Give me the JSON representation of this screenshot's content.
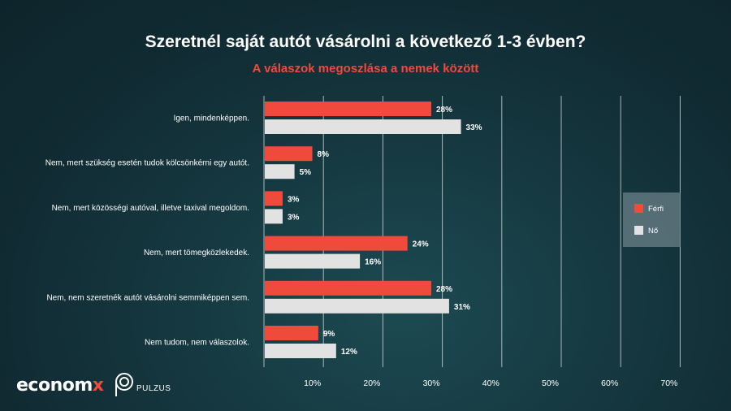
{
  "title": "Szeretnél saját autót vásárolni a következő 1-3 évben?",
  "subtitle": "A válaszok megoszlása a nemek között",
  "brand": {
    "economx": "econom",
    "economx_x": "x",
    "pulzus": "PULZUS"
  },
  "colors": {
    "background": "#133540",
    "ferfi": "#f04a3c",
    "no": "#e2e2e2",
    "grid": "#cfd8da",
    "legend_bg": "#6b8088"
  },
  "chart_data": {
    "type": "bar",
    "orientation": "horizontal",
    "title": "Szeretnél saját autót vásárolni a következő 1-3 évben?",
    "subtitle": "A válaszok megoszlása a nemek között",
    "categories": [
      "Igen, mindenképpen.",
      "Nem, mert szükség esetén tudok kölcsönkérni egy autót.",
      "Nem, mert közösségi autóval, illetve taxival megoldom.",
      "Nem, mert tömegközlekedek.",
      "Nem, nem szeretnék autót vásárolni semmiképpen sem.",
      "Nem tudom, nem válaszolok."
    ],
    "series": [
      {
        "name": "Férfi",
        "values": [
          28,
          8,
          3,
          24,
          28,
          9
        ]
      },
      {
        "name": "Nő",
        "values": [
          33,
          5,
          3,
          16,
          31,
          12
        ]
      }
    ],
    "xticks": [
      "10%",
      "20%",
      "30%",
      "40%",
      "50%",
      "60%",
      "70%"
    ],
    "xlim": [
      0,
      70
    ],
    "grid": true,
    "legend": "right",
    "value_suffix": "%"
  }
}
